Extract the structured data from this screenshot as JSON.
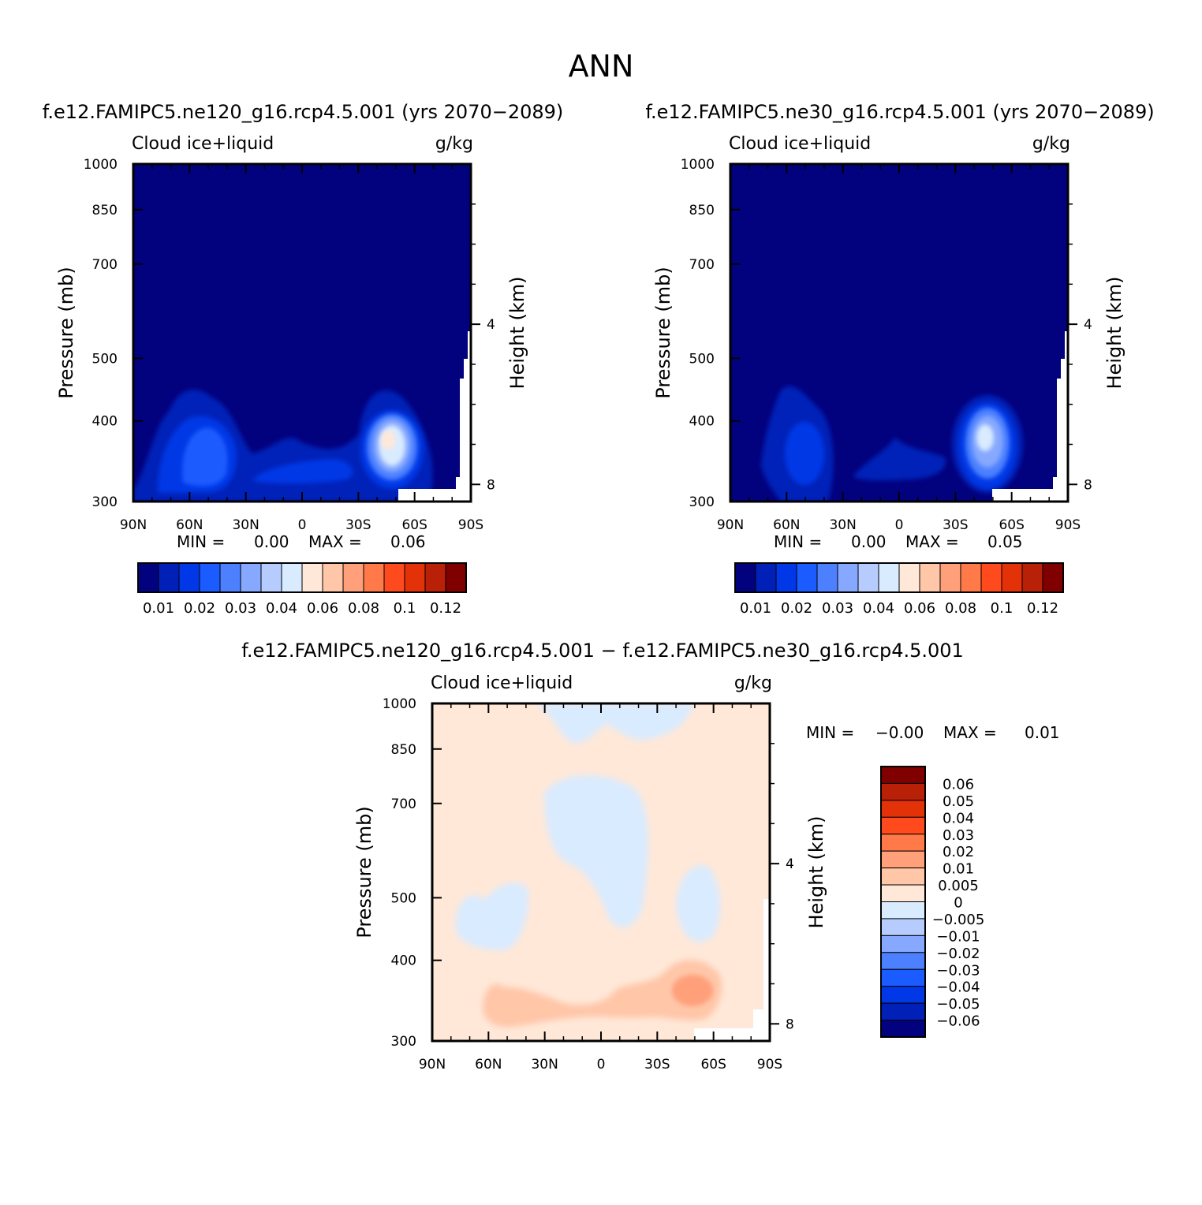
{
  "page_title": "ANN",
  "chart_data": [
    {
      "type": "heatmap",
      "title": "f.e12.FAMIPC5.ne120_g16.rcp4.5.001 (yrs 2070−2089)",
      "variable": "Cloud ice+liquid",
      "units": "g/kg",
      "ylabel": "Pressure (mb)",
      "ylabel_right": "Height (km)",
      "x_ticks": [
        "90N",
        "60N",
        "30N",
        "0",
        "30S",
        "60S",
        "90S"
      ],
      "y_ticks": [
        "300",
        "400",
        "500",
        "700",
        "850",
        "1000"
      ],
      "right_ticks": [
        "8",
        "4"
      ],
      "min_label": "MIN =",
      "min_value": "0.00",
      "max_label": "MAX =",
      "max_value": "0.06",
      "colorbar_labels": [
        "0.01",
        "0.02",
        "0.03",
        "0.04",
        "0.06",
        "0.08",
        "0.1",
        "0.12"
      ],
      "colorbar_colors": [
        "#02027f",
        "#0020b8",
        "#0037e6",
        "#1a5cff",
        "#4c80ff",
        "#86a8ff",
        "#b6ccff",
        "#d9ebff",
        "#ffe8d8",
        "#ffc6a8",
        "#ffa07a",
        "#ff7a48",
        "#ff4a1e",
        "#e43208",
        "#b82008",
        "#800000"
      ]
    },
    {
      "type": "heatmap",
      "title": "f.e12.FAMIPC5.ne30_g16.rcp4.5.001 (yrs 2070−2089)",
      "variable": "Cloud ice+liquid",
      "units": "g/kg",
      "ylabel": "Pressure (mb)",
      "ylabel_right": "Height (km)",
      "x_ticks": [
        "90N",
        "60N",
        "30N",
        "0",
        "30S",
        "60S",
        "90S"
      ],
      "y_ticks": [
        "300",
        "400",
        "500",
        "700",
        "850",
        "1000"
      ],
      "right_ticks": [
        "8",
        "4"
      ],
      "min_label": "MIN =",
      "min_value": "0.00",
      "max_label": "MAX =",
      "max_value": "0.05",
      "colorbar_labels": [
        "0.01",
        "0.02",
        "0.03",
        "0.04",
        "0.06",
        "0.08",
        "0.1",
        "0.12"
      ],
      "colorbar_colors": [
        "#02027f",
        "#0020b8",
        "#0037e6",
        "#1a5cff",
        "#4c80ff",
        "#86a8ff",
        "#b6ccff",
        "#d9ebff",
        "#ffe8d8",
        "#ffc6a8",
        "#ffa07a",
        "#ff7a48",
        "#ff4a1e",
        "#e43208",
        "#b82008",
        "#800000"
      ]
    },
    {
      "type": "heatmap",
      "title": "f.e12.FAMIPC5.ne120_g16.rcp4.5.001 − f.e12.FAMIPC5.ne30_g16.rcp4.5.001",
      "variable": "Cloud ice+liquid",
      "units": "g/kg",
      "ylabel": "Pressure (mb)",
      "ylabel_right": "Height (km)",
      "x_ticks": [
        "90N",
        "60N",
        "30N",
        "0",
        "30S",
        "60S",
        "90S"
      ],
      "y_ticks": [
        "300",
        "400",
        "500",
        "700",
        "850",
        "1000"
      ],
      "right_ticks": [
        "8",
        "4"
      ],
      "min_label": "MIN =",
      "min_value": "−0.00",
      "max_label": "MAX =",
      "max_value": "0.01",
      "colorbar_labels": [
        "0.06",
        "0.05",
        "0.04",
        "0.03",
        "0.02",
        "0.01",
        "0.005",
        "0",
        "−0.005",
        "−0.01",
        "−0.02",
        "−0.03",
        "−0.04",
        "−0.05",
        "−0.06"
      ],
      "colorbar_colors": [
        "#800000",
        "#b82008",
        "#e43208",
        "#ff4a1e",
        "#ff7a48",
        "#ffa07a",
        "#ffc6a8",
        "#ffe8d8",
        "#d9ebff",
        "#b6ccff",
        "#86a8ff",
        "#4c80ff",
        "#1a5cff",
        "#0037e6",
        "#0020b8",
        "#02027f"
      ]
    }
  ]
}
